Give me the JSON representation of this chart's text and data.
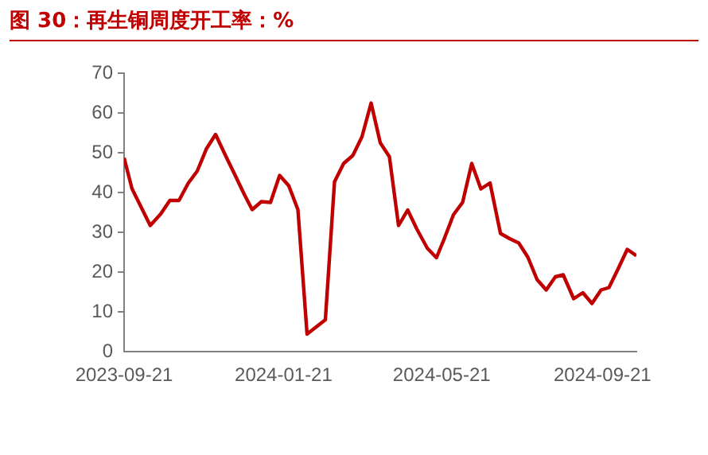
{
  "chart_data": {
    "type": "line",
    "title": "图 30：再生铜周度开工率：%",
    "x": [
      "2023-09-21",
      "2023-09-27",
      "2023-10-11",
      "2023-10-19",
      "2023-10-26",
      "2023-11-02",
      "2023-11-09",
      "2023-11-16",
      "2023-11-23",
      "2023-11-30",
      "2023-12-07",
      "2023-12-15",
      "2023-12-22",
      "2023-12-28",
      "2024-01-04",
      "2024-01-11",
      "2024-01-18",
      "2024-01-25",
      "2024-02-01",
      "2024-02-08",
      "2024-02-15",
      "2024-02-22",
      "2024-02-29",
      "2024-03-07",
      "2024-03-14",
      "2024-03-21",
      "2024-03-28",
      "2024-04-04",
      "2024-04-11",
      "2024-04-18",
      "2024-04-25",
      "2024-05-02",
      "2024-05-10",
      "2024-05-17",
      "2024-05-23",
      "2024-05-30",
      "2024-06-06",
      "2024-06-13",
      "2024-06-20",
      "2024-06-27",
      "2024-07-05",
      "2024-07-12",
      "2024-07-19",
      "2024-07-26",
      "2024-08-02",
      "2024-08-09",
      "2024-08-16",
      "2024-08-22",
      "2024-08-30",
      "2024-09-06",
      "2024-09-13",
      "2024-09-20",
      "2024-09-26",
      "2024-10-03",
      "2024-10-10",
      "2024-10-17"
    ],
    "series": [
      {
        "color": "#c00000",
        "values": [
          48.7,
          41,
          31.7,
          34.6,
          38,
          38,
          42.3,
          45.4,
          51,
          54.6,
          49.7,
          44.3,
          39.5,
          35.7,
          37.7,
          37.5,
          44.3,
          41.7,
          35.7,
          4.4,
          6.2,
          8,
          42.7,
          47.3,
          49.3,
          54,
          62.5,
          52.5,
          49,
          31.7,
          35.6,
          30.8,
          26,
          23.6,
          28.4,
          34.4,
          37.5,
          47.3,
          40.9,
          42.4,
          29.7,
          28.4,
          27.3,
          23.7,
          18.1,
          15.5,
          18.8,
          19.3,
          13.3,
          14.8,
          12.1,
          15.5,
          16.1,
          20.8,
          25.7,
          24.1
        ]
      }
    ],
    "xlim": [
      "2023-09-21",
      "2024-10-17"
    ],
    "xticks": [
      "2023-09-21",
      "2024-01-21",
      "2024-05-21",
      "2024-09-21"
    ],
    "ylim": [
      0,
      70
    ],
    "yticks": [
      0,
      10,
      20,
      30,
      40,
      50,
      60,
      70
    ],
    "grid": false,
    "legend": false,
    "marker": "none",
    "line_style": "solid"
  }
}
